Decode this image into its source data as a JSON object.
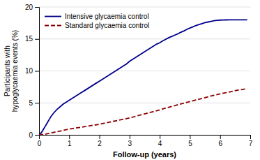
{
  "chart_data": {
    "type": "line",
    "title": "",
    "xlabel": "Follow-up (years)",
    "ylabel": "Participants with\nhypoglycaemia events (%)",
    "xlim": [
      0,
      7
    ],
    "ylim": [
      0,
      20
    ],
    "xticks": [
      0,
      1,
      2,
      3,
      4,
      5,
      6,
      7
    ],
    "yticks": [
      0,
      5,
      10,
      15,
      20
    ],
    "grid": "y",
    "legend": "upper left",
    "series": [
      {
        "name": "Intensive glycaemia control",
        "color": "#00008B",
        "line_style": "solid",
        "x": [
          0,
          0.05,
          0.1,
          0.15,
          0.2,
          0.25,
          0.3,
          0.35,
          0.4,
          0.45,
          0.5,
          0.6,
          0.7,
          0.8,
          0.9,
          1.0,
          1.1,
          1.2,
          1.3,
          1.4,
          1.5,
          1.6,
          1.7,
          1.8,
          1.9,
          2.0,
          2.1,
          2.2,
          2.3,
          2.4,
          2.5,
          2.6,
          2.7,
          2.8,
          2.9,
          3.0,
          3.1,
          3.2,
          3.3,
          3.4,
          3.5,
          3.6,
          3.7,
          3.8,
          3.9,
          4.0,
          4.1,
          4.2,
          4.3,
          4.4,
          4.5,
          4.6,
          4.7,
          4.8,
          4.9,
          5.0,
          5.1,
          5.2,
          5.3,
          5.4,
          5.5,
          5.6,
          5.7,
          5.8,
          5.9,
          6.0,
          6.1,
          6.2,
          6.3,
          6.4,
          6.5,
          6.6,
          6.7,
          6.8,
          6.85,
          6.9
        ],
        "values": [
          0,
          0.2,
          0.5,
          0.9,
          1.3,
          1.7,
          2.1,
          2.5,
          2.9,
          3.2,
          3.5,
          4.0,
          4.4,
          4.8,
          5.1,
          5.4,
          5.7,
          6.0,
          6.3,
          6.6,
          6.9,
          7.2,
          7.5,
          7.8,
          8.1,
          8.4,
          8.7,
          9.0,
          9.3,
          9.6,
          9.9,
          10.2,
          10.5,
          10.8,
          11.1,
          11.5,
          11.8,
          12.1,
          12.4,
          12.7,
          13.0,
          13.3,
          13.6,
          13.9,
          14.2,
          14.4,
          14.7,
          14.95,
          15.2,
          15.4,
          15.6,
          15.8,
          16.05,
          16.25,
          16.5,
          16.7,
          16.9,
          17.1,
          17.25,
          17.4,
          17.55,
          17.65,
          17.75,
          17.85,
          17.92,
          17.95,
          17.97,
          17.98,
          17.99,
          18.0,
          18.0,
          18.0,
          18.0,
          18.0,
          18.0,
          18.0
        ]
      },
      {
        "name": "Standard glycaemia control",
        "color": "#8B0000",
        "line_style": "dashed",
        "x": [
          0,
          0.1,
          0.2,
          0.3,
          0.4,
          0.5,
          0.6,
          0.7,
          0.8,
          0.9,
          1.0,
          1.2,
          1.4,
          1.6,
          1.8,
          2.0,
          2.2,
          2.4,
          2.6,
          2.8,
          3.0,
          3.2,
          3.4,
          3.6,
          3.8,
          4.0,
          4.2,
          4.4,
          4.6,
          4.8,
          5.0,
          5.2,
          5.4,
          5.6,
          5.8,
          6.0,
          6.2,
          6.4,
          6.6,
          6.8,
          6.9
        ],
        "values": [
          0,
          0.05,
          0.1,
          0.2,
          0.3,
          0.4,
          0.5,
          0.6,
          0.7,
          0.8,
          0.9,
          1.05,
          1.2,
          1.35,
          1.5,
          1.65,
          1.85,
          2.05,
          2.25,
          2.45,
          2.65,
          2.9,
          3.15,
          3.4,
          3.65,
          3.9,
          4.2,
          4.45,
          4.7,
          4.95,
          5.2,
          5.45,
          5.7,
          5.95,
          6.2,
          6.4,
          6.6,
          6.8,
          7.0,
          7.15,
          7.2
        ]
      }
    ]
  }
}
